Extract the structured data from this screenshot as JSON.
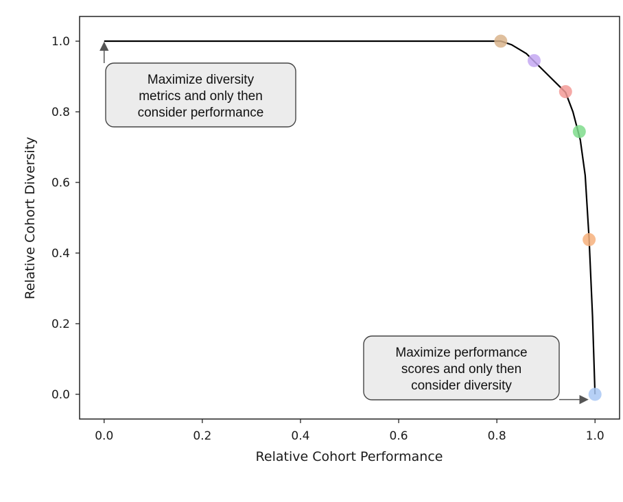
{
  "chart_data": {
    "type": "line",
    "title": "",
    "xlabel": "Relative Cohort Performance",
    "ylabel": "Relative Cohort Diversity",
    "xlim": [
      -0.05,
      1.05
    ],
    "ylim": [
      -0.07,
      1.07
    ],
    "x_ticks": [
      "0.0",
      "0.2",
      "0.4",
      "0.6",
      "0.8",
      "1.0"
    ],
    "y_ticks": [
      "0.0",
      "0.2",
      "0.4",
      "0.6",
      "0.8",
      "1.0"
    ],
    "grid": false,
    "curve": {
      "x": [
        0.0,
        0.808,
        0.83,
        0.86,
        0.9,
        0.94,
        0.955,
        0.97,
        0.98,
        0.988,
        0.995,
        1.0
      ],
      "y": [
        1.0,
        1.0,
        0.99,
        0.965,
        0.91,
        0.855,
        0.8,
        0.72,
        0.62,
        0.44,
        0.22,
        0.0
      ],
      "color": "#000000"
    },
    "points": [
      {
        "x": 0.808,
        "y": 1.0,
        "color": "#d9b48c"
      },
      {
        "x": 0.876,
        "y": 0.945,
        "color": "#c4a8f2"
      },
      {
        "x": 0.94,
        "y": 0.857,
        "color": "#f39a97"
      },
      {
        "x": 0.968,
        "y": 0.744,
        "color": "#7fdc8c"
      },
      {
        "x": 0.988,
        "y": 0.438,
        "color": "#f6b07c"
      },
      {
        "x": 1.0,
        "y": 0.0,
        "color": "#a9c8f5"
      }
    ],
    "annotations": [
      {
        "lines": [
          "Maximize diversity",
          "metrics and only then",
          "consider performance"
        ],
        "target_x": 0.0,
        "target_y": 1.0
      },
      {
        "lines": [
          "Maximize performance",
          "scores and only then",
          "consider diversity"
        ],
        "target_x": 0.985,
        "target_y": -0.015
      }
    ]
  }
}
